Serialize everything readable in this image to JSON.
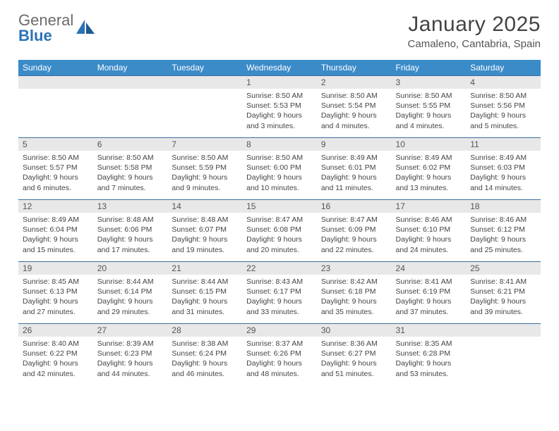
{
  "brand": {
    "word1": "General",
    "word2": "Blue"
  },
  "title": "January 2025",
  "location": "Camaleno, Cantabria, Spain",
  "colors": {
    "header_bg": "#3b8bc9",
    "header_text": "#ffffff",
    "row_border": "#3b6fa0",
    "daynum_bg": "#e8e8e8",
    "body_text": "#444444",
    "brand_grey": "#6b6b6b",
    "brand_blue": "#2a72b5"
  },
  "day_headers": [
    "Sunday",
    "Monday",
    "Tuesday",
    "Wednesday",
    "Thursday",
    "Friday",
    "Saturday"
  ],
  "weeks": [
    [
      {
        "n": "",
        "sr": "",
        "ss": "",
        "dl": ""
      },
      {
        "n": "",
        "sr": "",
        "ss": "",
        "dl": ""
      },
      {
        "n": "",
        "sr": "",
        "ss": "",
        "dl": ""
      },
      {
        "n": "1",
        "sr": "Sunrise: 8:50 AM",
        "ss": "Sunset: 5:53 PM",
        "dl": "Daylight: 9 hours and 3 minutes."
      },
      {
        "n": "2",
        "sr": "Sunrise: 8:50 AM",
        "ss": "Sunset: 5:54 PM",
        "dl": "Daylight: 9 hours and 4 minutes."
      },
      {
        "n": "3",
        "sr": "Sunrise: 8:50 AM",
        "ss": "Sunset: 5:55 PM",
        "dl": "Daylight: 9 hours and 4 minutes."
      },
      {
        "n": "4",
        "sr": "Sunrise: 8:50 AM",
        "ss": "Sunset: 5:56 PM",
        "dl": "Daylight: 9 hours and 5 minutes."
      }
    ],
    [
      {
        "n": "5",
        "sr": "Sunrise: 8:50 AM",
        "ss": "Sunset: 5:57 PM",
        "dl": "Daylight: 9 hours and 6 minutes."
      },
      {
        "n": "6",
        "sr": "Sunrise: 8:50 AM",
        "ss": "Sunset: 5:58 PM",
        "dl": "Daylight: 9 hours and 7 minutes."
      },
      {
        "n": "7",
        "sr": "Sunrise: 8:50 AM",
        "ss": "Sunset: 5:59 PM",
        "dl": "Daylight: 9 hours and 9 minutes."
      },
      {
        "n": "8",
        "sr": "Sunrise: 8:50 AM",
        "ss": "Sunset: 6:00 PM",
        "dl": "Daylight: 9 hours and 10 minutes."
      },
      {
        "n": "9",
        "sr": "Sunrise: 8:49 AM",
        "ss": "Sunset: 6:01 PM",
        "dl": "Daylight: 9 hours and 11 minutes."
      },
      {
        "n": "10",
        "sr": "Sunrise: 8:49 AM",
        "ss": "Sunset: 6:02 PM",
        "dl": "Daylight: 9 hours and 13 minutes."
      },
      {
        "n": "11",
        "sr": "Sunrise: 8:49 AM",
        "ss": "Sunset: 6:03 PM",
        "dl": "Daylight: 9 hours and 14 minutes."
      }
    ],
    [
      {
        "n": "12",
        "sr": "Sunrise: 8:49 AM",
        "ss": "Sunset: 6:04 PM",
        "dl": "Daylight: 9 hours and 15 minutes."
      },
      {
        "n": "13",
        "sr": "Sunrise: 8:48 AM",
        "ss": "Sunset: 6:06 PM",
        "dl": "Daylight: 9 hours and 17 minutes."
      },
      {
        "n": "14",
        "sr": "Sunrise: 8:48 AM",
        "ss": "Sunset: 6:07 PM",
        "dl": "Daylight: 9 hours and 19 minutes."
      },
      {
        "n": "15",
        "sr": "Sunrise: 8:47 AM",
        "ss": "Sunset: 6:08 PM",
        "dl": "Daylight: 9 hours and 20 minutes."
      },
      {
        "n": "16",
        "sr": "Sunrise: 8:47 AM",
        "ss": "Sunset: 6:09 PM",
        "dl": "Daylight: 9 hours and 22 minutes."
      },
      {
        "n": "17",
        "sr": "Sunrise: 8:46 AM",
        "ss": "Sunset: 6:10 PM",
        "dl": "Daylight: 9 hours and 24 minutes."
      },
      {
        "n": "18",
        "sr": "Sunrise: 8:46 AM",
        "ss": "Sunset: 6:12 PM",
        "dl": "Daylight: 9 hours and 25 minutes."
      }
    ],
    [
      {
        "n": "19",
        "sr": "Sunrise: 8:45 AM",
        "ss": "Sunset: 6:13 PM",
        "dl": "Daylight: 9 hours and 27 minutes."
      },
      {
        "n": "20",
        "sr": "Sunrise: 8:44 AM",
        "ss": "Sunset: 6:14 PM",
        "dl": "Daylight: 9 hours and 29 minutes."
      },
      {
        "n": "21",
        "sr": "Sunrise: 8:44 AM",
        "ss": "Sunset: 6:15 PM",
        "dl": "Daylight: 9 hours and 31 minutes."
      },
      {
        "n": "22",
        "sr": "Sunrise: 8:43 AM",
        "ss": "Sunset: 6:17 PM",
        "dl": "Daylight: 9 hours and 33 minutes."
      },
      {
        "n": "23",
        "sr": "Sunrise: 8:42 AM",
        "ss": "Sunset: 6:18 PM",
        "dl": "Daylight: 9 hours and 35 minutes."
      },
      {
        "n": "24",
        "sr": "Sunrise: 8:41 AM",
        "ss": "Sunset: 6:19 PM",
        "dl": "Daylight: 9 hours and 37 minutes."
      },
      {
        "n": "25",
        "sr": "Sunrise: 8:41 AM",
        "ss": "Sunset: 6:21 PM",
        "dl": "Daylight: 9 hours and 39 minutes."
      }
    ],
    [
      {
        "n": "26",
        "sr": "Sunrise: 8:40 AM",
        "ss": "Sunset: 6:22 PM",
        "dl": "Daylight: 9 hours and 42 minutes."
      },
      {
        "n": "27",
        "sr": "Sunrise: 8:39 AM",
        "ss": "Sunset: 6:23 PM",
        "dl": "Daylight: 9 hours and 44 minutes."
      },
      {
        "n": "28",
        "sr": "Sunrise: 8:38 AM",
        "ss": "Sunset: 6:24 PM",
        "dl": "Daylight: 9 hours and 46 minutes."
      },
      {
        "n": "29",
        "sr": "Sunrise: 8:37 AM",
        "ss": "Sunset: 6:26 PM",
        "dl": "Daylight: 9 hours and 48 minutes."
      },
      {
        "n": "30",
        "sr": "Sunrise: 8:36 AM",
        "ss": "Sunset: 6:27 PM",
        "dl": "Daylight: 9 hours and 51 minutes."
      },
      {
        "n": "31",
        "sr": "Sunrise: 8:35 AM",
        "ss": "Sunset: 6:28 PM",
        "dl": "Daylight: 9 hours and 53 minutes."
      },
      {
        "n": "",
        "sr": "",
        "ss": "",
        "dl": ""
      }
    ]
  ]
}
